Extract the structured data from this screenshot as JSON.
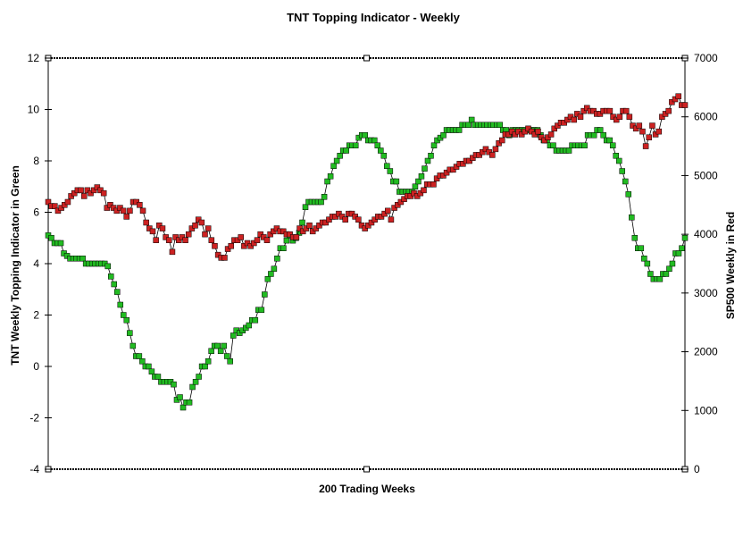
{
  "chart_data": {
    "type": "line",
    "title": "TNT Topping Indicator - Weekly",
    "xlabel": "200 Trading Weeks",
    "ylabel_left": "TNT Weekly Topping Indicator in Green",
    "ylabel_right": "SP500 Weekly in Red",
    "ylim_left": [
      -4,
      12
    ],
    "ylim_right": [
      0,
      7000
    ],
    "yticks_left": [
      "-4",
      "-2",
      "0",
      "2",
      "4",
      "6",
      "8",
      "10",
      "12"
    ],
    "yticks_right": [
      "0",
      "1000",
      "2000",
      "3000",
      "4000",
      "5000",
      "6000",
      "7000"
    ],
    "xlim": [
      0,
      200
    ],
    "grid": false,
    "legend": "none",
    "series": [
      {
        "axis": "left",
        "color": "#22bb22",
        "values": [
          5.1,
          5.0,
          4.8,
          4.8,
          4.8,
          4.4,
          4.3,
          4.2,
          4.2,
          4.2,
          4.2,
          4.2,
          4.0,
          4.0,
          4.0,
          4.0,
          4.0,
          4.0,
          4.0,
          3.9,
          3.5,
          3.2,
          2.9,
          2.4,
          2.0,
          1.8,
          1.3,
          0.8,
          0.4,
          0.4,
          0.2,
          0.0,
          0.0,
          -0.2,
          -0.4,
          -0.4,
          -0.6,
          -0.6,
          -0.6,
          -0.6,
          -0.7,
          -1.3,
          -1.2,
          -1.6,
          -1.4,
          -1.4,
          -0.8,
          -0.6,
          -0.4,
          0.0,
          0.0,
          0.2,
          0.6,
          0.8,
          0.8,
          0.6,
          0.8,
          0.4,
          0.2,
          1.2,
          1.4,
          1.3,
          1.4,
          1.5,
          1.6,
          1.8,
          1.8,
          2.2,
          2.2,
          2.8,
          3.4,
          3.6,
          3.8,
          4.2,
          4.6,
          4.6,
          4.9,
          5.1,
          4.9,
          5.0,
          5.2,
          5.6,
          6.2,
          6.4,
          6.4,
          6.4,
          6.4,
          6.4,
          6.6,
          7.2,
          7.4,
          7.8,
          8.0,
          8.2,
          8.4,
          8.4,
          8.6,
          8.6,
          8.6,
          8.9,
          9.0,
          9.0,
          8.8,
          8.8,
          8.8,
          8.6,
          8.4,
          8.2,
          7.8,
          7.6,
          7.2,
          7.2,
          6.8,
          6.8,
          6.8,
          6.8,
          6.8,
          7.0,
          7.2,
          7.4,
          7.7,
          8.0,
          8.2,
          8.6,
          8.8,
          8.9,
          9.0,
          9.2,
          9.2,
          9.2,
          9.2,
          9.2,
          9.4,
          9.4,
          9.4,
          9.6,
          9.4,
          9.4,
          9.4,
          9.4,
          9.4,
          9.4,
          9.4,
          9.4,
          9.4,
          9.2,
          9.2,
          9.0,
          9.2,
          9.2,
          9.2,
          9.2,
          9.2,
          9.2,
          9.2,
          9.2,
          9.2,
          9.0,
          8.8,
          8.8,
          8.6,
          8.6,
          8.4,
          8.4,
          8.4,
          8.4,
          8.4,
          8.6,
          8.6,
          8.6,
          8.6,
          8.6,
          9.0,
          9.0,
          9.0,
          9.2,
          9.2,
          9.0,
          8.8,
          8.8,
          8.6,
          8.2,
          8.0,
          7.6,
          7.2,
          6.7,
          5.8,
          5.0,
          4.6,
          4.6,
          4.2,
          4.0,
          3.6,
          3.4,
          3.4,
          3.4,
          3.6,
          3.6,
          3.8,
          4.0,
          4.4,
          4.4,
          4.6,
          5.0
        ]
      },
      {
        "axis": "right",
        "color": "#cc2222",
        "values": [
          4550,
          4480,
          4480,
          4400,
          4450,
          4500,
          4550,
          4650,
          4700,
          4750,
          4750,
          4650,
          4750,
          4700,
          4750,
          4800,
          4750,
          4700,
          4450,
          4500,
          4450,
          4400,
          4450,
          4400,
          4300,
          4400,
          4550,
          4550,
          4500,
          4400,
          4200,
          4100,
          4050,
          3900,
          4150,
          4100,
          3950,
          3900,
          3700,
          3950,
          3900,
          3950,
          3900,
          4000,
          4100,
          4150,
          4250,
          4200,
          4000,
          4100,
          3900,
          3800,
          3650,
          3600,
          3600,
          3750,
          3800,
          3900,
          3900,
          3950,
          3800,
          3850,
          3800,
          3850,
          3900,
          4000,
          3950,
          3900,
          4000,
          4050,
          4100,
          4050,
          4050,
          4000,
          4000,
          3950,
          3950,
          4100,
          4050,
          4100,
          4150,
          4050,
          4100,
          4150,
          4200,
          4200,
          4250,
          4300,
          4300,
          4350,
          4300,
          4250,
          4350,
          4350,
          4300,
          4250,
          4150,
          4100,
          4150,
          4200,
          4250,
          4300,
          4300,
          4350,
          4400,
          4250,
          4450,
          4500,
          4550,
          4600,
          4650,
          4650,
          4700,
          4650,
          4700,
          4750,
          4850,
          4850,
          4850,
          4950,
          5000,
          5000,
          5050,
          5100,
          5100,
          5150,
          5200,
          5200,
          5250,
          5250,
          5300,
          5350,
          5350,
          5400,
          5450,
          5400,
          5350,
          5450,
          5550,
          5600,
          5700,
          5700,
          5750,
          5700,
          5750,
          5700,
          5750,
          5800,
          5750,
          5700,
          5750,
          5650,
          5600,
          5650,
          5700,
          5800,
          5850,
          5900,
          5900,
          5950,
          6000,
          5950,
          6050,
          6000,
          6100,
          6150,
          6100,
          6100,
          6050,
          6050,
          6100,
          6100,
          6100,
          6000,
          5950,
          6000,
          6100,
          6100,
          6000,
          5850,
          5800,
          5850,
          5750,
          5500,
          5650,
          5850,
          5700,
          5750,
          6000,
          6050,
          6100,
          6250,
          6300,
          6350,
          6200,
          6200
        ]
      }
    ]
  }
}
